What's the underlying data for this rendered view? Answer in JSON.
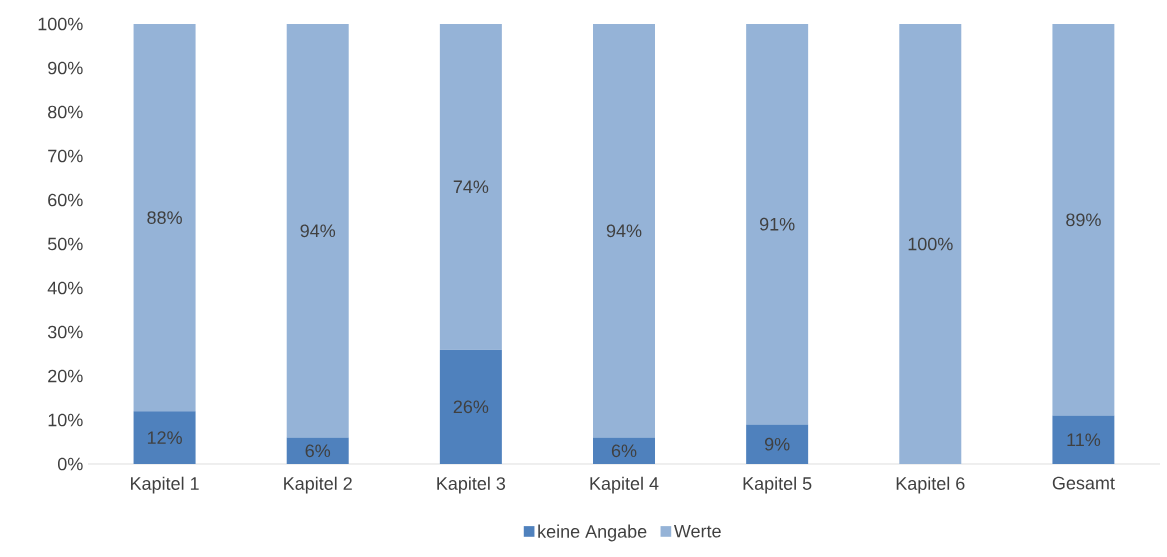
{
  "chart_data": {
    "type": "bar",
    "stacked": true,
    "categories": [
      "Kapitel 1",
      "Kapitel 2",
      "Kapitel 3",
      "Kapitel 4",
      "Kapitel 5",
      "Kapitel 6",
      "Gesamt"
    ],
    "series": [
      {
        "name": "keine Angabe",
        "color": "#4f81bd",
        "values": [
          12,
          6,
          26,
          6,
          9,
          0,
          11
        ],
        "value_labels": [
          "12%",
          "6%",
          "26%",
          "6%",
          "9%",
          null,
          "11%"
        ]
      },
      {
        "name": "Werte",
        "color": "#95b3d7",
        "values": [
          88,
          94,
          74,
          94,
          91,
          100,
          89
        ],
        "value_labels": [
          "88%",
          "94%",
          "74%",
          "94%",
          "91%",
          "100%",
          "89%"
        ]
      }
    ],
    "ylim": [
      0,
      100
    ],
    "yticks": [
      {
        "value": 0,
        "label": "0%"
      },
      {
        "value": 10,
        "label": "10%"
      },
      {
        "value": 20,
        "label": "20%"
      },
      {
        "value": 30,
        "label": "30%"
      },
      {
        "value": 40,
        "label": "40%"
      },
      {
        "value": 50,
        "label": "50%"
      },
      {
        "value": 60,
        "label": "60%"
      },
      {
        "value": 70,
        "label": "70%"
      },
      {
        "value": 80,
        "label": "80%"
      },
      {
        "value": 90,
        "label": "90%"
      },
      {
        "value": 100,
        "label": "100%"
      }
    ],
    "legend": "bottom"
  }
}
